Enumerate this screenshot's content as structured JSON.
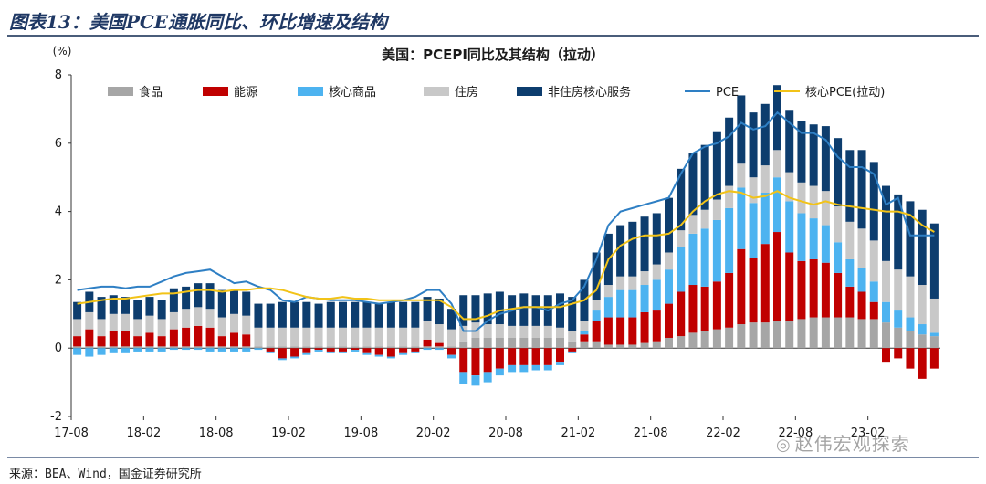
{
  "header": {
    "title": "图表13：美国PCE通胀同比、环比增速及结构"
  },
  "footer": {
    "source": "来源：BEA、Wind，国金证券研究所"
  },
  "watermark": {
    "text": "赵伟宏观探索",
    "icon": "wechat-icon"
  },
  "chart_data": {
    "type": "bar",
    "title": "美国：PCEPI同比及其结构（拉动）",
    "unit_label": "(%)",
    "ylim": [
      -2,
      8
    ],
    "yticks": [
      -2,
      0,
      2,
      4,
      6,
      8
    ],
    "x_tick_labels": [
      "17-08",
      "18-02",
      "18-08",
      "19-02",
      "19-08",
      "20-02",
      "20-08",
      "21-02",
      "21-08",
      "22-02",
      "22-08",
      "23-02"
    ],
    "x_tick_every": 6,
    "stacked": true,
    "legend_position": "top",
    "colors": {
      "food": "#a6a6a6",
      "energy": "#c00000",
      "core_goods": "#4db3f0",
      "housing": "#c8c8c8",
      "nonhousing_services": "#0d3d6e",
      "pce_line": "#2e7fc4",
      "core_pce_line": "#f2c318"
    },
    "categories": [
      "17-08",
      "17-09",
      "17-10",
      "17-11",
      "17-12",
      "18-01",
      "18-02",
      "18-03",
      "18-04",
      "18-05",
      "18-06",
      "18-07",
      "18-08",
      "18-09",
      "18-10",
      "18-11",
      "18-12",
      "19-01",
      "19-02",
      "19-03",
      "19-04",
      "19-05",
      "19-06",
      "19-07",
      "19-08",
      "19-09",
      "19-10",
      "19-11",
      "19-12",
      "20-01",
      "20-02",
      "20-03",
      "20-04",
      "20-05",
      "20-06",
      "20-07",
      "20-08",
      "20-09",
      "20-10",
      "20-11",
      "20-12",
      "21-01",
      "21-02",
      "21-03",
      "21-04",
      "21-05",
      "21-06",
      "21-07",
      "21-08",
      "21-09",
      "21-10",
      "21-11",
      "21-12",
      "22-01",
      "22-02",
      "22-03",
      "22-04",
      "22-05",
      "22-06",
      "22-07",
      "22-08",
      "22-09",
      "22-10",
      "22-11",
      "22-12",
      "23-01",
      "23-02",
      "23-03",
      "23-04",
      "23-05",
      "23-06",
      "23-07"
    ],
    "series": [
      {
        "name": "食品",
        "key": "food",
        "values": [
          0.05,
          0.05,
          0.05,
          0.05,
          0.05,
          0.05,
          0.05,
          0.05,
          0.05,
          0.05,
          0.05,
          0.05,
          0.05,
          0.05,
          0.05,
          0.05,
          0.05,
          0.05,
          0.05,
          0.05,
          0.05,
          0.05,
          0.05,
          0.05,
          0.05,
          0.05,
          0.05,
          0.05,
          0.05,
          0.05,
          0.05,
          0.05,
          0.2,
          0.3,
          0.3,
          0.3,
          0.3,
          0.3,
          0.3,
          0.3,
          0.3,
          0.2,
          0.2,
          0.2,
          0.1,
          0.1,
          0.1,
          0.15,
          0.2,
          0.3,
          0.35,
          0.45,
          0.5,
          0.55,
          0.6,
          0.7,
          0.75,
          0.75,
          0.8,
          0.8,
          0.85,
          0.9,
          0.9,
          0.9,
          0.9,
          0.85,
          0.85,
          0.75,
          0.6,
          0.5,
          0.4,
          0.35
        ]
      },
      {
        "name": "能源",
        "key": "energy",
        "values": [
          0.3,
          0.5,
          0.3,
          0.45,
          0.45,
          0.3,
          0.4,
          0.3,
          0.5,
          0.55,
          0.6,
          0.55,
          0.3,
          0.4,
          0.35,
          0.0,
          -0.1,
          -0.3,
          -0.25,
          -0.15,
          -0.05,
          -0.1,
          -0.1,
          -0.05,
          -0.15,
          -0.2,
          -0.25,
          -0.15,
          -0.1,
          0.2,
          0.1,
          -0.2,
          -0.7,
          -0.8,
          -0.7,
          -0.6,
          -0.5,
          -0.5,
          -0.5,
          -0.5,
          -0.4,
          -0.1,
          0.2,
          0.6,
          0.8,
          0.8,
          0.8,
          0.9,
          0.9,
          1.0,
          1.3,
          1.4,
          1.3,
          1.4,
          1.6,
          2.2,
          1.9,
          2.3,
          2.6,
          2.0,
          1.7,
          1.7,
          1.6,
          1.3,
          0.9,
          0.8,
          0.5,
          -0.4,
          -0.3,
          -0.6,
          -0.9,
          -0.6
        ]
      },
      {
        "name": "核心商品",
        "key": "core_goods",
        "values": [
          -0.2,
          -0.25,
          -0.2,
          -0.15,
          -0.15,
          -0.1,
          -0.1,
          -0.1,
          -0.05,
          -0.05,
          -0.05,
          -0.1,
          -0.1,
          -0.1,
          -0.1,
          -0.05,
          -0.05,
          -0.05,
          -0.05,
          -0.05,
          -0.05,
          -0.05,
          -0.05,
          -0.05,
          -0.05,
          -0.05,
          -0.05,
          -0.05,
          -0.05,
          -0.05,
          -0.05,
          -0.1,
          -0.35,
          -0.3,
          -0.3,
          -0.2,
          -0.2,
          -0.2,
          -0.15,
          -0.15,
          -0.1,
          -0.05,
          0.1,
          0.3,
          0.6,
          0.8,
          0.8,
          0.8,
          0.9,
          1.0,
          1.3,
          1.5,
          1.7,
          1.8,
          1.9,
          1.8,
          1.6,
          1.5,
          1.6,
          1.5,
          1.4,
          1.2,
          1.1,
          0.9,
          0.8,
          0.7,
          0.6,
          0.6,
          0.5,
          0.4,
          0.3,
          0.1
        ]
      },
      {
        "name": "住房",
        "key": "housing",
        "values": [
          0.5,
          0.5,
          0.5,
          0.5,
          0.5,
          0.5,
          0.5,
          0.5,
          0.5,
          0.55,
          0.55,
          0.55,
          0.55,
          0.55,
          0.55,
          0.55,
          0.55,
          0.55,
          0.55,
          0.55,
          0.55,
          0.55,
          0.55,
          0.55,
          0.55,
          0.55,
          0.55,
          0.55,
          0.55,
          0.55,
          0.55,
          0.5,
          0.45,
          0.45,
          0.4,
          0.4,
          0.35,
          0.35,
          0.35,
          0.35,
          0.3,
          0.3,
          0.3,
          0.3,
          0.35,
          0.4,
          0.4,
          0.4,
          0.45,
          0.5,
          0.5,
          0.55,
          0.55,
          0.6,
          0.65,
          0.7,
          0.75,
          0.8,
          0.8,
          0.85,
          0.9,
          0.95,
          1.0,
          1.05,
          1.1,
          1.15,
          1.2,
          1.2,
          1.2,
          1.2,
          1.15,
          1.0
        ]
      },
      {
        "name": "非住房核心服务",
        "key": "nonhousing_services",
        "values": [
          0.5,
          0.6,
          0.65,
          0.55,
          0.5,
          0.55,
          0.55,
          0.55,
          0.7,
          0.65,
          0.7,
          0.75,
          0.8,
          0.7,
          0.7,
          0.7,
          0.7,
          0.75,
          0.75,
          0.75,
          0.7,
          0.75,
          0.75,
          0.75,
          0.75,
          0.7,
          0.75,
          0.75,
          0.75,
          0.7,
          0.75,
          0.6,
          0.9,
          0.8,
          0.9,
          0.95,
          0.9,
          0.95,
          0.9,
          0.9,
          1.0,
          1.0,
          1.2,
          1.4,
          1.5,
          1.5,
          1.6,
          1.6,
          1.5,
          1.6,
          1.8,
          1.8,
          1.9,
          2.0,
          2.0,
          2.0,
          1.9,
          1.8,
          1.9,
          1.8,
          1.8,
          1.8,
          1.9,
          2.0,
          2.1,
          2.3,
          2.3,
          2.2,
          2.2,
          2.2,
          2.2,
          2.2
        ]
      }
    ],
    "lines": [
      {
        "name": "PCE",
        "key": "pce_line",
        "values": [
          1.7,
          1.75,
          1.8,
          1.8,
          1.75,
          1.8,
          1.8,
          1.95,
          2.1,
          2.2,
          2.25,
          2.3,
          2.1,
          1.9,
          1.95,
          1.8,
          1.7,
          1.4,
          1.35,
          1.5,
          1.45,
          1.4,
          1.4,
          1.4,
          1.35,
          1.3,
          1.35,
          1.4,
          1.5,
          1.7,
          1.7,
          1.3,
          0.5,
          0.5,
          0.8,
          1.0,
          1.1,
          1.2,
          1.2,
          1.1,
          1.3,
          1.4,
          1.8,
          2.6,
          3.6,
          4.0,
          4.1,
          4.2,
          4.3,
          4.4,
          5.1,
          5.7,
          5.9,
          6.0,
          6.2,
          6.6,
          6.4,
          6.5,
          6.9,
          6.6,
          6.3,
          6.3,
          6.1,
          5.6,
          5.3,
          5.3,
          5.1,
          4.2,
          4.4,
          3.3,
          3.3,
          3.3
        ]
      },
      {
        "name": "核心PCE(拉动)",
        "key": "core_pce_line",
        "values": [
          1.3,
          1.35,
          1.4,
          1.45,
          1.45,
          1.5,
          1.55,
          1.6,
          1.6,
          1.65,
          1.7,
          1.7,
          1.65,
          1.7,
          1.7,
          1.75,
          1.75,
          1.7,
          1.6,
          1.5,
          1.45,
          1.45,
          1.5,
          1.45,
          1.45,
          1.4,
          1.4,
          1.4,
          1.4,
          1.4,
          1.4,
          1.2,
          0.85,
          0.85,
          0.95,
          1.1,
          1.15,
          1.2,
          1.2,
          1.2,
          1.2,
          1.3,
          1.4,
          1.7,
          2.6,
          3.0,
          3.2,
          3.3,
          3.3,
          3.35,
          3.6,
          4.0,
          4.3,
          4.5,
          4.6,
          4.55,
          4.4,
          4.45,
          4.6,
          4.4,
          4.3,
          4.2,
          4.3,
          4.2,
          4.15,
          4.1,
          4.05,
          4.0,
          4.0,
          3.9,
          3.6,
          3.4
        ]
      }
    ]
  }
}
